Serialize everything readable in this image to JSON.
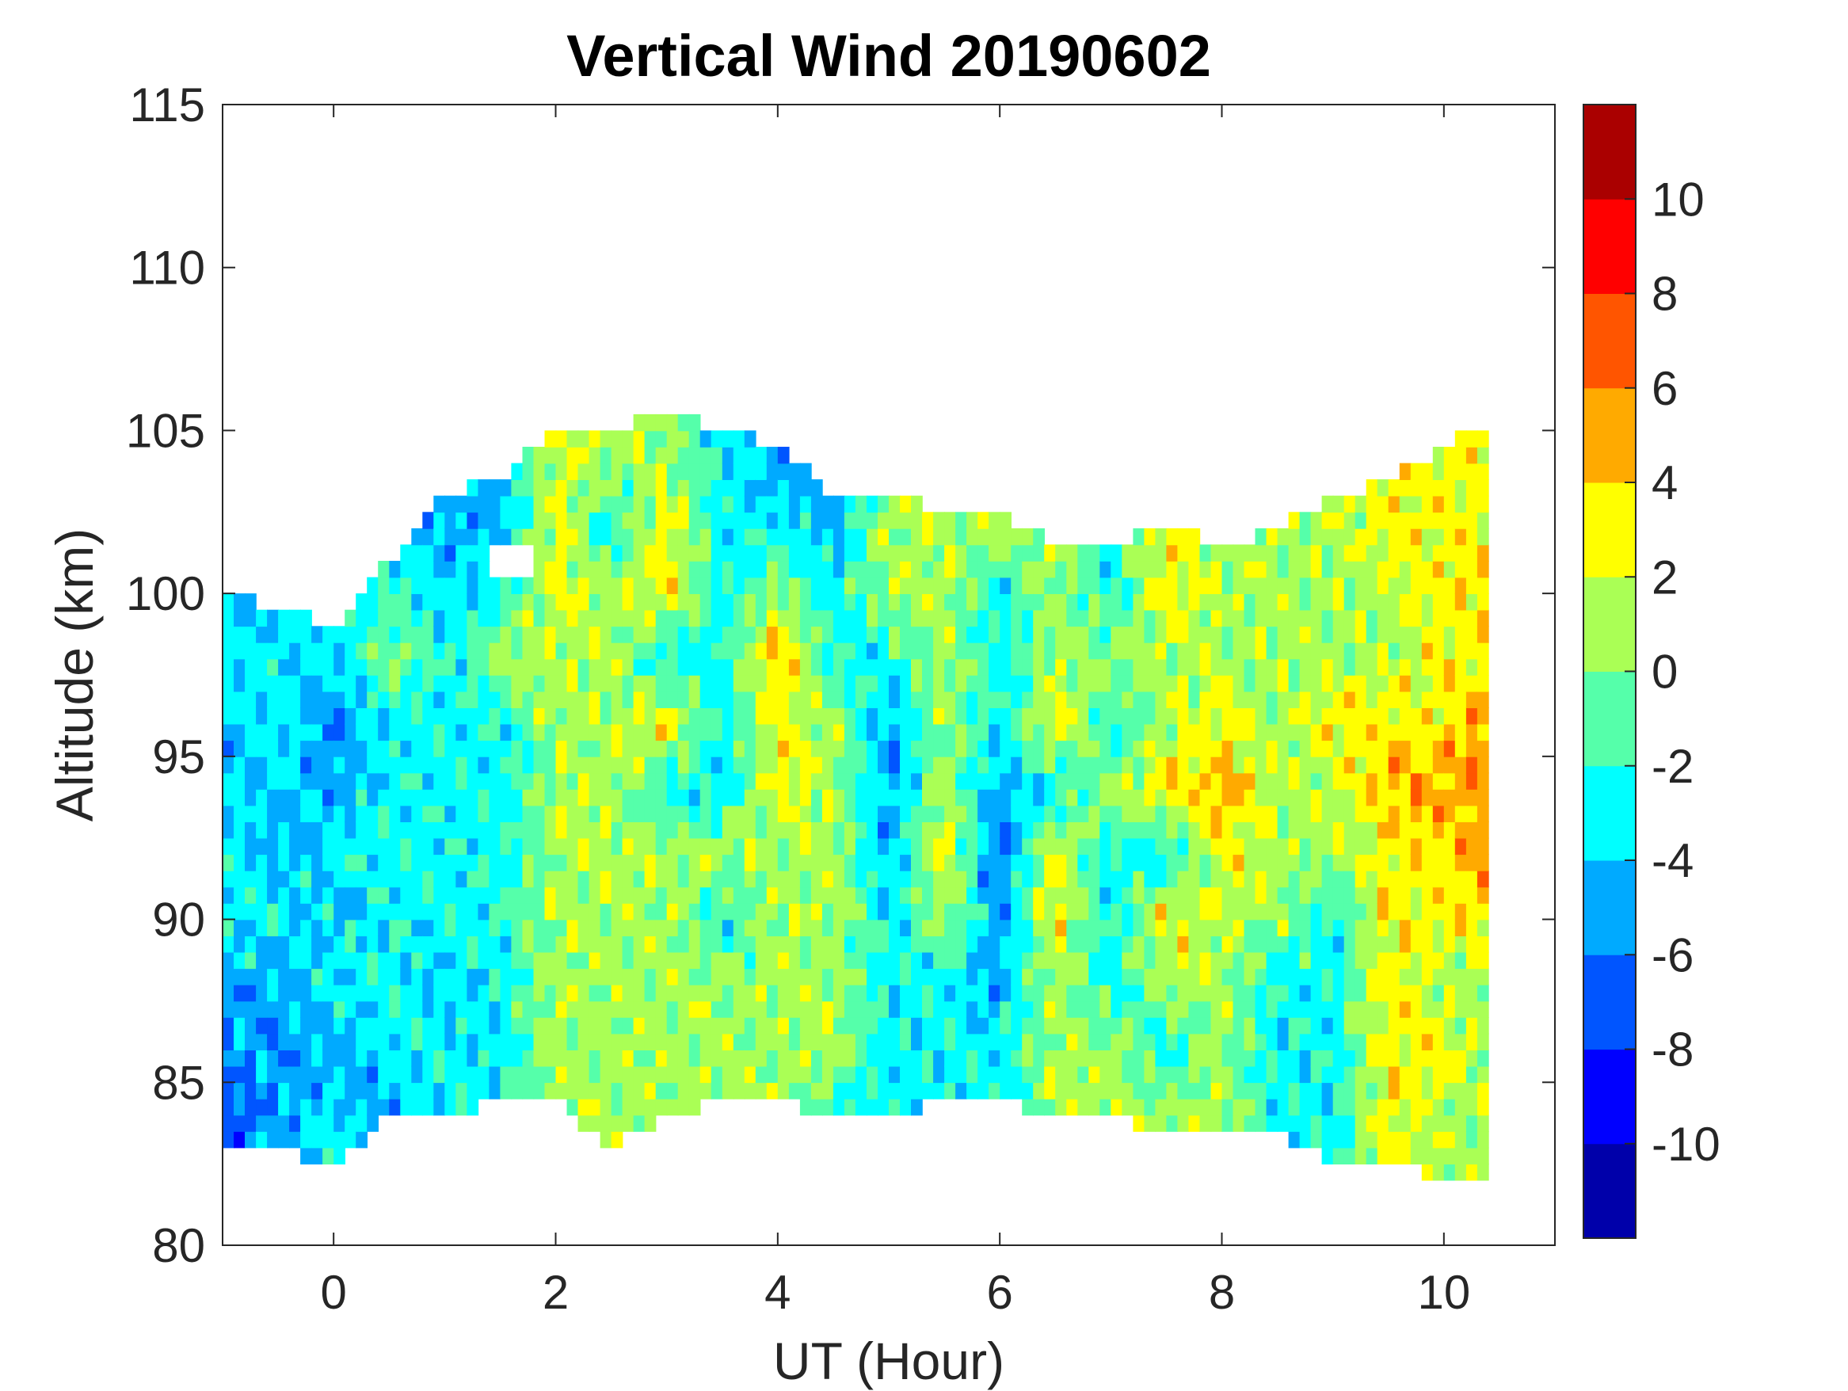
{
  "chart_data": {
    "type": "heatmap",
    "subtype": "filled-contour",
    "title": "Vertical Wind 20190602",
    "xlabel": "UT (Hour)",
    "ylabel": "Altitude (km)",
    "xlim": [
      -1,
      11
    ],
    "ylim": [
      80,
      115
    ],
    "xticks": [
      "0",
      "2",
      "4",
      "6",
      "8",
      "10"
    ],
    "xtick_values": [
      0,
      2,
      4,
      6,
      8,
      10
    ],
    "yticks": [
      "80",
      "85",
      "90",
      "95",
      "100",
      "105",
      "110",
      "115"
    ],
    "ytick_values": [
      80,
      85,
      90,
      95,
      100,
      105,
      110,
      115
    ],
    "colorbar": {
      "levels": [
        -12,
        -10,
        -8,
        -6,
        -4,
        -2,
        0,
        2,
        4,
        6,
        8,
        10,
        12
      ],
      "ticks": [
        "-10",
        "-8",
        "-6",
        "-4",
        "-2",
        "0",
        "2",
        "4",
        "6",
        "8",
        "10"
      ],
      "tick_values": [
        -10,
        -8,
        -6,
        -4,
        -2,
        0,
        2,
        4,
        6,
        8,
        10
      ],
      "colors": [
        "#0000aa",
        "#0000ff",
        "#0055ff",
        "#00aaff",
        "#00ffff",
        "#55ffaa",
        "#aaff55",
        "#ffff00",
        "#ffaa00",
        "#ff5500",
        "#ff0000",
        "#aa0000"
      ]
    },
    "x": [
      -1,
      -0.5,
      0,
      0.5,
      1,
      1.5,
      2,
      2.5,
      3,
      3.5,
      4,
      4.5,
      5,
      5.5,
      6,
      6.5,
      7,
      7.5,
      8,
      8.5,
      9,
      9.5,
      10,
      10.25
    ],
    "y": [
      84,
      86,
      88,
      90,
      92,
      94,
      96,
      98,
      100,
      102,
      104
    ],
    "data_top_km": [
      100.3,
      99.5,
      99,
      101,
      103,
      103.5,
      105,
      105,
      105.5,
      105,
      104.5,
      103,
      103,
      102.5,
      102.5,
      101.5,
      101.5,
      102,
      101.5,
      102,
      103,
      103.5,
      104.5,
      105
    ],
    "data_bottom_km": [
      83,
      83,
      82.5,
      84,
      84,
      84.5,
      84.5,
      83,
      84,
      84.5,
      84.5,
      84,
      84,
      84.5,
      84.5,
      84,
      84,
      83.5,
      83.5,
      83.5,
      82.5,
      82.5,
      82,
      82
    ],
    "values_ms": [
      [
        -7,
        -5,
        -5,
        -3,
        -3,
        -4,
        -5,
        -3,
        -4,
        null,
        null
      ],
      [
        -5,
        -6,
        -5,
        -3,
        -5,
        -4,
        -3,
        -3,
        -5,
        null,
        null
      ],
      [
        -3,
        -5,
        -3,
        -4,
        -3,
        -5,
        -6,
        -4,
        -4,
        null,
        null
      ],
      [
        -6,
        -3,
        -3,
        -3,
        -3,
        -3,
        -3,
        1,
        -2,
        null,
        null
      ],
      [
        -3,
        -3,
        -4,
        -3,
        -3,
        -3,
        -3,
        -3,
        -4,
        -5,
        null
      ],
      [
        -3,
        -3,
        -3,
        -2,
        -3,
        -3,
        -3,
        1,
        -3,
        -5,
        null
      ],
      [
        1,
        1,
        1,
        1,
        1,
        1,
        1,
        1,
        3,
        3,
        2
      ],
      [
        1,
        1,
        1,
        1,
        1,
        1,
        1,
        1,
        1,
        -3,
        1
      ],
      [
        1,
        1,
        1,
        1,
        1,
        -3,
        3,
        -3,
        3,
        3,
        1
      ],
      [
        1,
        1,
        1,
        -3,
        1,
        -3,
        -3,
        -3,
        -3,
        -3,
        -3
      ],
      [
        1,
        1,
        1,
        1,
        1,
        3,
        3,
        5,
        1,
        -3,
        -5
      ],
      [
        -3,
        1,
        1,
        1,
        1,
        1,
        1,
        -3,
        -3,
        -5,
        -5
      ],
      [
        -3,
        -3,
        -3,
        -3,
        -5,
        -5,
        -5,
        -3,
        1,
        1,
        null
      ],
      [
        -3,
        -3,
        -3,
        1,
        3,
        1,
        1,
        1,
        1,
        1,
        null
      ],
      [
        -3,
        -3,
        -5,
        -5,
        -7,
        -5,
        -3,
        -3,
        -3,
        1,
        null
      ],
      [
        1,
        1,
        1,
        3,
        3,
        -3,
        3,
        1,
        1,
        1,
        null
      ],
      [
        1,
        1,
        -3,
        -3,
        -3,
        1,
        -3,
        1,
        -3,
        -3,
        null
      ],
      [
        1,
        -3,
        1,
        3,
        -3,
        3,
        1,
        1,
        3,
        3,
        null
      ],
      [
        1,
        1,
        1,
        1,
        3,
        5,
        3,
        1,
        1,
        1,
        null
      ],
      [
        -3,
        -3,
        -3,
        1,
        1,
        1,
        1,
        1,
        1,
        1,
        null
      ],
      [
        -3,
        -3,
        -3,
        -3,
        1,
        1,
        3,
        1,
        1,
        1,
        null
      ],
      [
        3,
        3,
        3,
        3,
        3,
        5,
        3,
        1,
        1,
        3,
        null
      ],
      [
        1,
        3,
        1,
        3,
        3,
        5,
        3,
        3,
        3,
        3,
        3
      ],
      [
        1,
        1,
        1,
        3,
        5,
        5,
        5,
        3,
        3,
        3,
        3
      ]
    ]
  }
}
